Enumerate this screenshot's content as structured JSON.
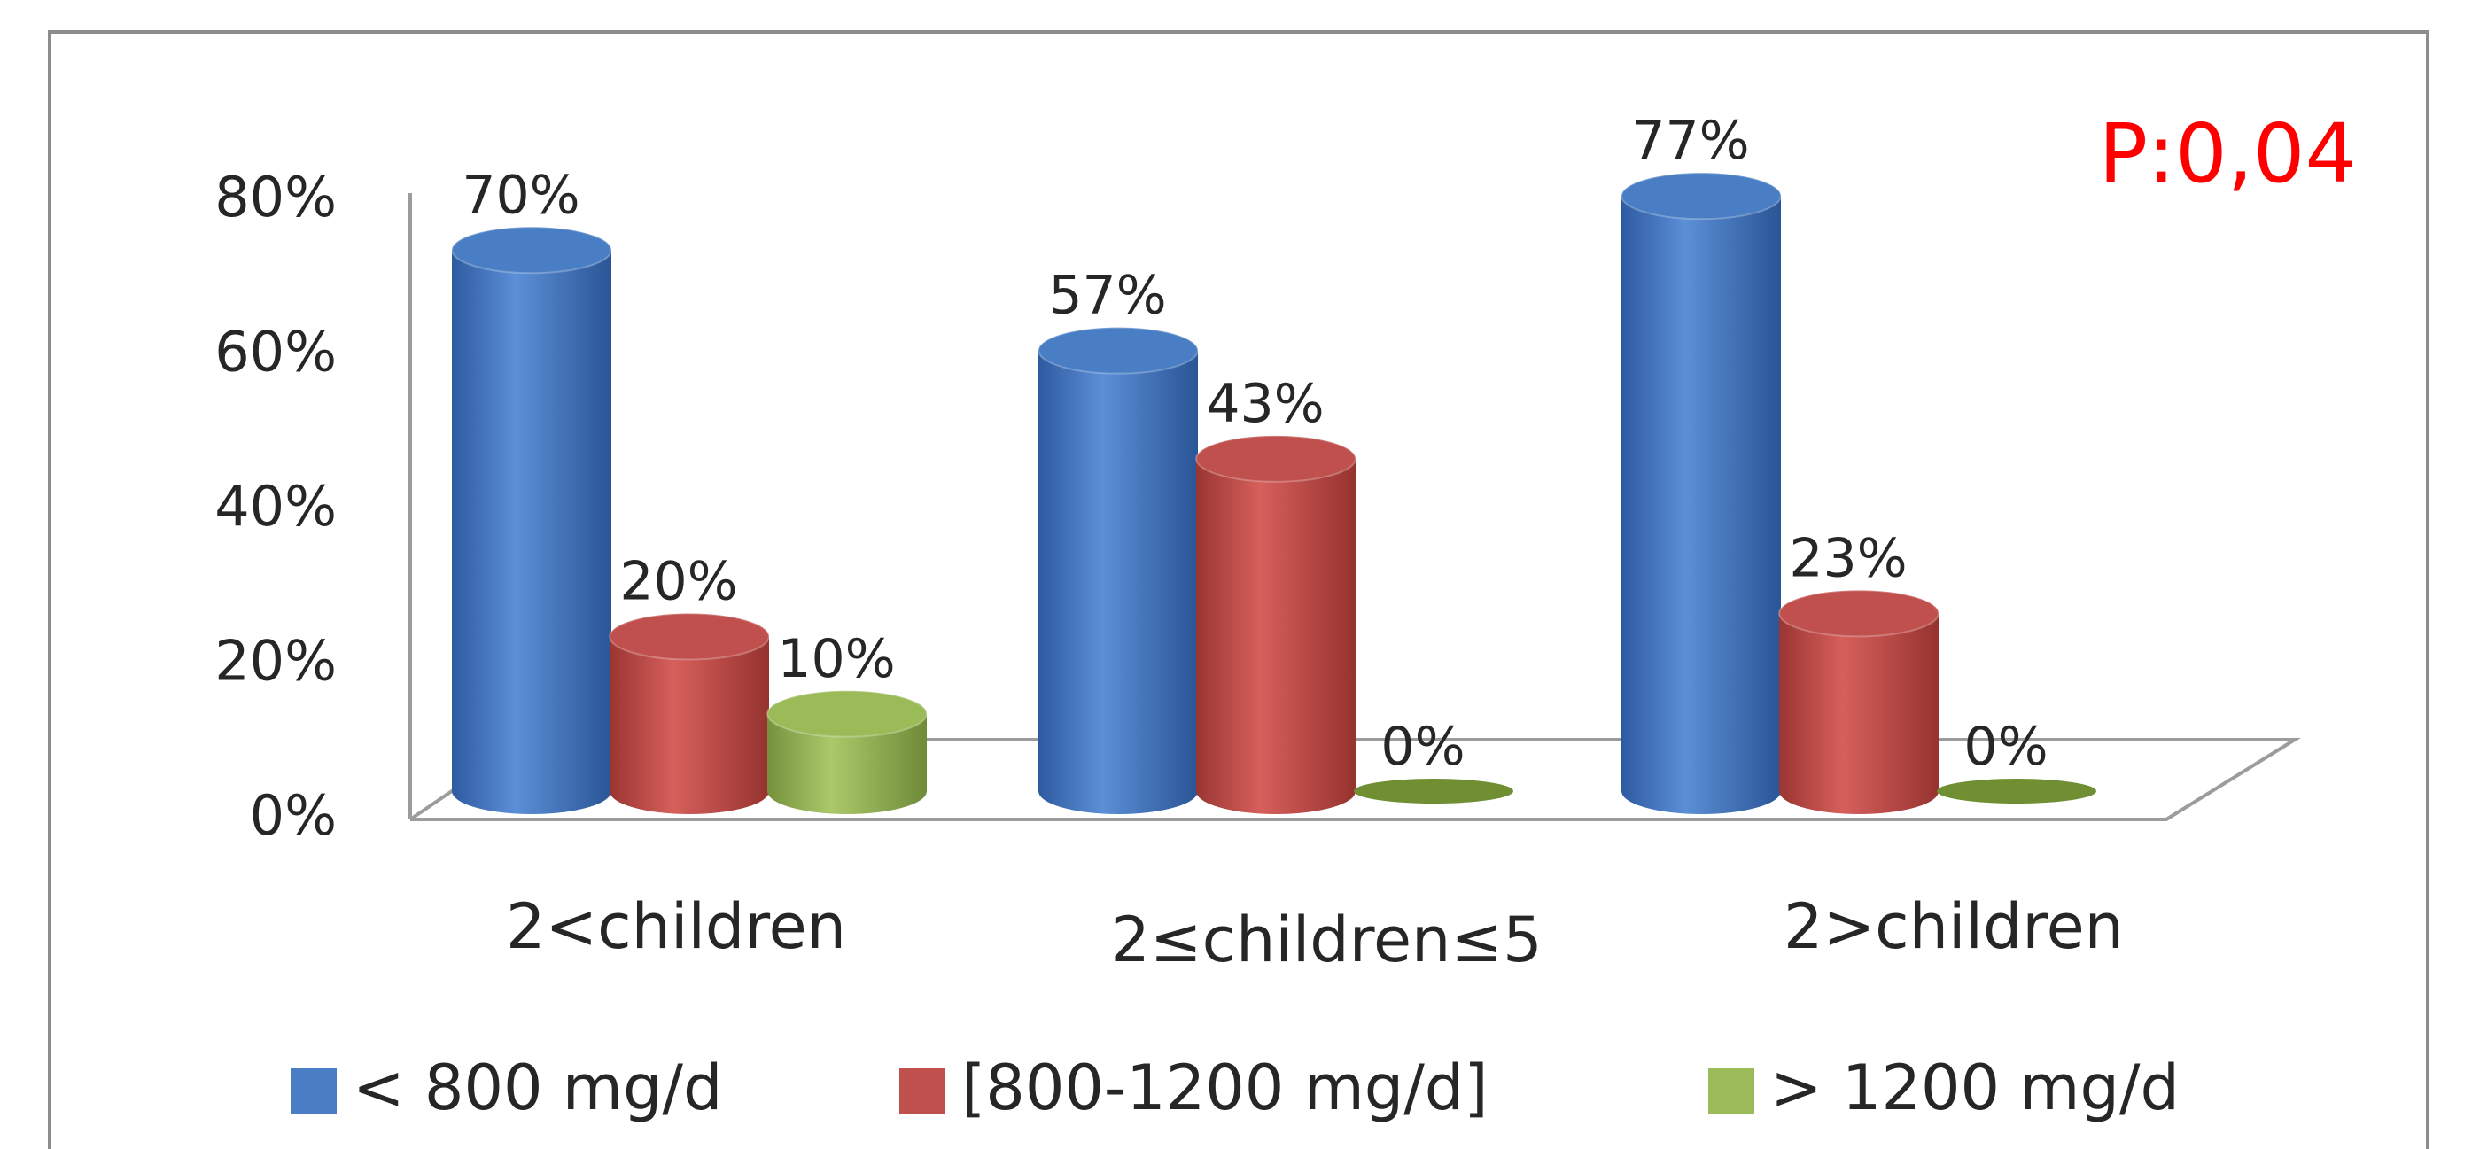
{
  "chart_data": {
    "type": "bar",
    "style": "3d-cylinder",
    "categories": [
      "2<children",
      "2≤children≤5",
      "2>children"
    ],
    "series": [
      {
        "name": "< 800 mg/d",
        "values": [
          70,
          57,
          77
        ],
        "labels": [
          "70%",
          "57%",
          "77%"
        ],
        "color": "#4a7ec4"
      },
      {
        "name": "[800-1200 mg/d]",
        "values": [
          20,
          43,
          23
        ],
        "labels": [
          "20%",
          "43%",
          "23%"
        ],
        "color": "#c0504d"
      },
      {
        "name": "> 1200 mg/d",
        "values": [
          10,
          0,
          0
        ],
        "labels": [
          "10%",
          "0%",
          "0%"
        ],
        "color": "#9bbb59"
      }
    ],
    "yticks": [
      0,
      20,
      40,
      60,
      80
    ],
    "ytick_labels": [
      "0%",
      "20%",
      "40%",
      "60%",
      "80%"
    ],
    "ylim": [
      0,
      80
    ],
    "annotation": "P:0,04",
    "annotation_color": "#ff0000",
    "legend_position": "bottom",
    "grid": false
  }
}
